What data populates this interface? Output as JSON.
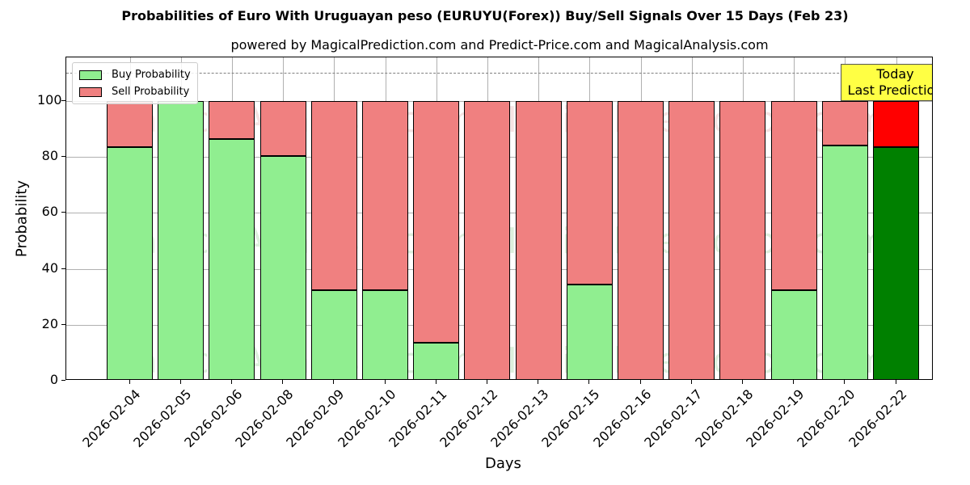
{
  "title": "Probabilities of Euro With Uruguayan peso (EURUYU(Forex)) Buy/Sell Signals Over 15 Days (Feb 23)",
  "subtitle": "powered by MagicalPrediction.com and Predict-Price.com and MagicalAnalysis.com",
  "legend": {
    "buy": "Buy Probability",
    "sell": "Sell Probability"
  },
  "annotation": {
    "line1": "Today",
    "line2": "Last Prediction"
  },
  "watermarks": [
    "MagicalAnalysis.com",
    "MagicalPrediction.com"
  ],
  "colors": {
    "buy": "#90ee90",
    "sell": "#f08080",
    "buy_today": "#008000",
    "sell_today": "#ff0000",
    "annotation_bg": "#ffff44"
  },
  "chart_data": {
    "type": "bar",
    "stacked": true,
    "title": "Probabilities of Euro With Uruguayan peso (EURUYU(Forex)) Buy/Sell Signals Over 15 Days (Feb 23)",
    "subtitle": "powered by MagicalPrediction.com and Predict-Price.com and MagicalAnalysis.com",
    "xlabel": "Days",
    "ylabel": "Probability",
    "ylim": [
      0,
      115
    ],
    "yticks": [
      0,
      20,
      40,
      60,
      80,
      100
    ],
    "grid": true,
    "legend_position": "upper left",
    "reference_line": {
      "y": 110,
      "style": "dashed",
      "color": "#808080"
    },
    "categories": [
      "2026-02-04",
      "2026-02-05",
      "2026-02-06",
      "2026-02-08",
      "2026-02-09",
      "2026-02-10",
      "2026-02-11",
      "2026-02-12",
      "2026-02-13",
      "2026-02-15",
      "2026-02-16",
      "2026-02-17",
      "2026-02-18",
      "2026-02-19",
      "2026-02-20",
      "2026-02-22"
    ],
    "series": [
      {
        "name": "Buy Probability",
        "values": [
          83.5,
          100,
          86.4,
          80.3,
          32.4,
          32.4,
          13.6,
          0,
          0,
          34.4,
          0,
          0,
          0,
          32.4,
          84.1,
          83.5
        ]
      },
      {
        "name": "Sell Probability",
        "values": [
          16.5,
          0,
          13.6,
          19.7,
          67.6,
          67.6,
          86.4,
          100,
          100,
          65.6,
          100,
          100,
          100,
          67.6,
          15.9,
          16.5
        ]
      }
    ],
    "annotations": [
      {
        "text": "Today\nLast Prediction",
        "x": "2026-02-22"
      }
    ]
  }
}
